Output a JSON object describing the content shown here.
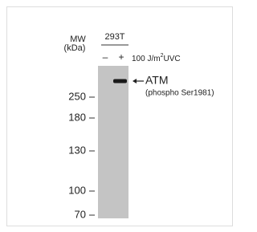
{
  "header": {
    "mw": "MW",
    "unit": "(kDa)",
    "cell_line": "293T"
  },
  "lanes": [
    "–",
    "+"
  ],
  "treatment": {
    "prefix": "100 J/m",
    "sup": "2",
    "suffix": "UVC"
  },
  "markers": [
    "250",
    "180",
    "130",
    "100",
    "70"
  ],
  "band": {
    "label": "ATM",
    "detail": "(phospho Ser1981)"
  }
}
